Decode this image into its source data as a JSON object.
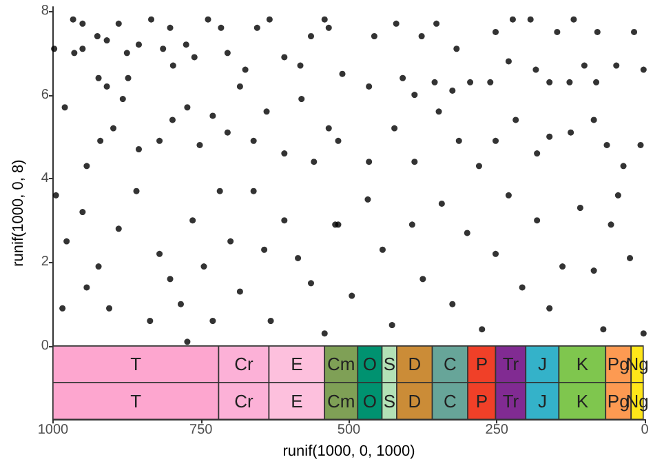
{
  "chart_data": {
    "type": "scatter",
    "xlabel": "runif(1000, 0, 1000)",
    "ylabel": "runif(1000, 0, 8)",
    "xlim": [
      1000,
      0
    ],
    "xticks": [
      1000,
      750,
      500,
      250,
      0
    ],
    "ylim": [
      -1.75,
      8.1
    ],
    "yticks": [
      0,
      2,
      4,
      6,
      8
    ],
    "grid": false,
    "marker": "circle",
    "series": [
      {
        "color": "#000000",
        "x": [
          998,
          966,
          964,
          950,
          950,
          925,
          923,
          909,
          909,
          889,
          875,
          873,
          855,
          834,
          814,
          802,
          797,
          775,
          761,
          738,
          716,
          705,
          675,
          655,
          634,
          609,
          582,
          564,
          541,
          980,
          943,
          920,
          898,
          882,
          855,
          820,
          798,
          773,
          752,
          730,
          705,
          684,
          661,
          639,
          609,
          580,
          559,
          534,
          534,
          457,
          420,
          377,
          352,
          318,
          252,
          223,
          193,
          148,
          120,
          80,
          18,
          511,
          466,
          409,
          389,
          355,
          325,
          295,
          261,
          230,
          184,
          161,
          127,
          102,
          82,
          48,
          2,
          518,
          466,
          423,
          389,
          348,
          314,
          280,
          252,
          218,
          182,
          161,
          125,
          86,
          64,
          36,
          7,
          995,
          977,
          984,
          950,
          943,
          923,
          905,
          889,
          859,
          836,
          820,
          802,
          784,
          773,
          764,
          745,
          730,
          718,
          700,
          684,
          661,
          643,
          632,
          609,
          586,
          564,
          541,
          523,
          518,
          495,
          468,
          443,
          427,
          393,
          375,
          343,
          325,
          300,
          275,
          252,
          230,
          207,
          182,
          161,
          139,
          109,
          86,
          70,
          45,
          25,
          2,
          57
        ],
        "values": [
          7.1,
          7.8,
          7.0,
          7.7,
          7.1,
          7.4,
          6.4,
          7.3,
          6.2,
          7.7,
          7.0,
          6.4,
          7.2,
          7.8,
          7.1,
          7.6,
          6.7,
          7.2,
          6.9,
          7.8,
          7.6,
          7.0,
          6.6,
          7.6,
          7.8,
          6.9,
          6.7,
          7.4,
          7.8,
          5.7,
          4.3,
          4.9,
          5.2,
          5.9,
          4.7,
          4.9,
          5.4,
          5.7,
          4.8,
          5.5,
          5.1,
          6.2,
          4.9,
          5.6,
          4.6,
          5.9,
          4.4,
          5.2,
          7.6,
          7.4,
          7.7,
          7.4,
          7.7,
          7.1,
          7.5,
          7.8,
          7.8,
          7.5,
          7.8,
          7.5,
          7.5,
          6.5,
          6.2,
          6.4,
          6.0,
          6.3,
          6.1,
          6.3,
          6.3,
          6.8,
          6.6,
          6.3,
          6.3,
          6.7,
          6.3,
          6.7,
          6.6,
          4.9,
          4.4,
          5.2,
          4.4,
          5.6,
          4.9,
          4.3,
          4.9,
          5.4,
          4.6,
          5.0,
          5.1,
          5.4,
          4.8,
          4.3,
          4.8,
          3.6,
          2.5,
          0.9,
          3.2,
          1.4,
          1.9,
          0.9,
          2.8,
          3.7,
          0.6,
          2.2,
          1.6,
          1.0,
          0.1,
          3.0,
          1.9,
          0.6,
          3.7,
          2.5,
          1.3,
          3.7,
          2.3,
          0.6,
          3.0,
          2.1,
          1.5,
          0.3,
          2.9,
          2.9,
          1.2,
          3.5,
          2.3,
          0.5,
          2.9,
          1.6,
          3.4,
          1.0,
          2.7,
          0.4,
          2.2,
          3.6,
          1.4,
          3.0,
          0.9,
          1.9,
          3.3,
          1.8,
          0.4,
          3.6,
          2.1,
          0.3,
          2.9
        ]
      }
    ],
    "bands": [
      {
        "axis": "x",
        "from": 1000,
        "to": 720,
        "label": "T",
        "color": "#fda6cf"
      },
      {
        "axis": "x",
        "from": 720,
        "to": 635,
        "label": "Cr",
        "color": "#fcb1d7"
      },
      {
        "axis": "x",
        "from": 635,
        "to": 541,
        "label": "E",
        "color": "#fdc0dd"
      },
      {
        "axis": "x",
        "from": 541,
        "to": 485,
        "label": "Cm",
        "color": "#7fa056"
      },
      {
        "axis": "x",
        "from": 485,
        "to": 444,
        "label": "O",
        "color": "#009270"
      },
      {
        "axis": "x",
        "from": 444,
        "to": 419,
        "label": "S",
        "color": "#b3e1b6"
      },
      {
        "axis": "x",
        "from": 419,
        "to": 359,
        "label": "D",
        "color": "#cb8c37"
      },
      {
        "axis": "x",
        "from": 359,
        "to": 299,
        "label": "C",
        "color": "#67a599"
      },
      {
        "axis": "x",
        "from": 299,
        "to": 252,
        "label": "P",
        "color": "#f04028"
      },
      {
        "axis": "x",
        "from": 252,
        "to": 201,
        "label": "Tr",
        "color": "#812b92"
      },
      {
        "axis": "x",
        "from": 201,
        "to": 145,
        "label": "J",
        "color": "#34b2c9"
      },
      {
        "axis": "x",
        "from": 145,
        "to": 66,
        "label": "K",
        "color": "#7fc64e"
      },
      {
        "axis": "x",
        "from": 66,
        "to": 23,
        "label": "Pg",
        "color": "#fd9a52"
      },
      {
        "axis": "x",
        "from": 23,
        "to": 2.6,
        "label": "Ng",
        "color": "#ffe619"
      },
      {
        "axis": "x",
        "from": 1000,
        "to": 720,
        "label": "T",
        "color": "#fda6cf"
      },
      {
        "axis": "x",
        "from": 720,
        "to": 635,
        "label": "Cr",
        "color": "#fcb1d7"
      },
      {
        "axis": "x",
        "from": 635,
        "to": 541,
        "label": "E",
        "color": "#fdc0dd"
      },
      {
        "axis": "x",
        "from": 541,
        "to": 485,
        "label": "Cm",
        "color": "#7fa056"
      },
      {
        "axis": "x",
        "from": 485,
        "to": 444,
        "label": "O",
        "color": "#009270"
      },
      {
        "axis": "x",
        "from": 444,
        "to": 419,
        "label": "S",
        "color": "#b3e1b6"
      },
      {
        "axis": "x",
        "from": 419,
        "to": 359,
        "label": "D",
        "color": "#cb8c37"
      },
      {
        "axis": "x",
        "from": 359,
        "to": 299,
        "label": "C",
        "color": "#67a599"
      },
      {
        "axis": "x",
        "from": 299,
        "to": 252,
        "label": "P",
        "color": "#f04028"
      },
      {
        "axis": "x",
        "from": 252,
        "to": 201,
        "label": "Tr",
        "color": "#812b92"
      },
      {
        "axis": "x",
        "from": 201,
        "to": 145,
        "label": "J",
        "color": "#34b2c9"
      },
      {
        "axis": "x",
        "from": 145,
        "to": 66,
        "label": "K",
        "color": "#7fc64e"
      },
      {
        "axis": "x",
        "from": 66,
        "to": 23,
        "label": "Pg",
        "color": "#fd9a52"
      },
      {
        "axis": "x",
        "from": 23,
        "to": 2.6,
        "label": "Ng",
        "color": "#ffe619"
      }
    ]
  }
}
